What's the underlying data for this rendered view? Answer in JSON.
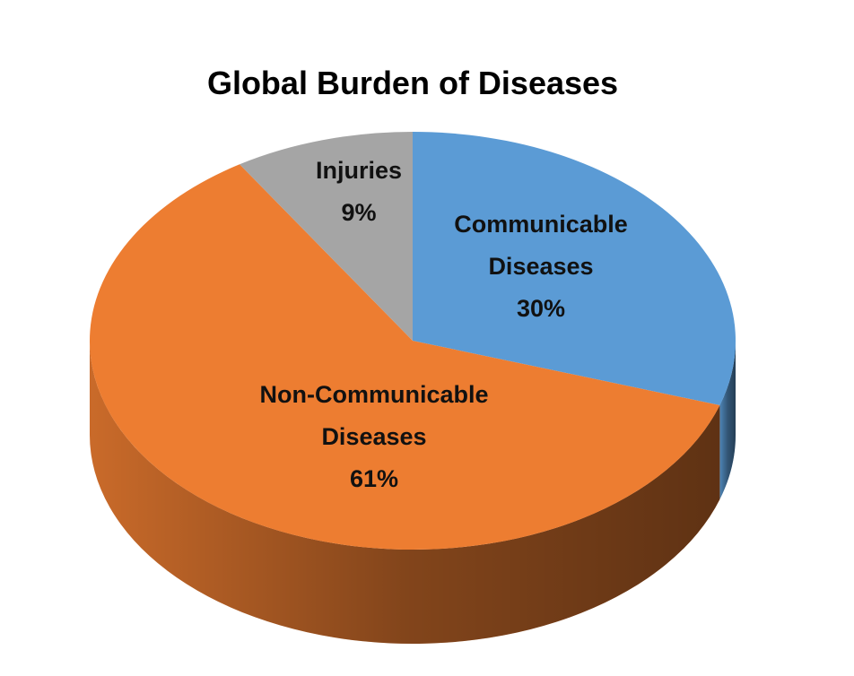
{
  "chart_data": {
    "type": "pie",
    "title": "Global Burden of Diseases",
    "categories": [
      "Communicable Diseases",
      "Non-Communicable Diseases",
      "Injuries"
    ],
    "values": [
      30,
      61,
      9
    ],
    "value_labels": [
      "30%",
      "61%",
      "9%"
    ],
    "colors": [
      "#5b9bd5",
      "#ed7d31",
      "#a5a5a5"
    ]
  }
}
